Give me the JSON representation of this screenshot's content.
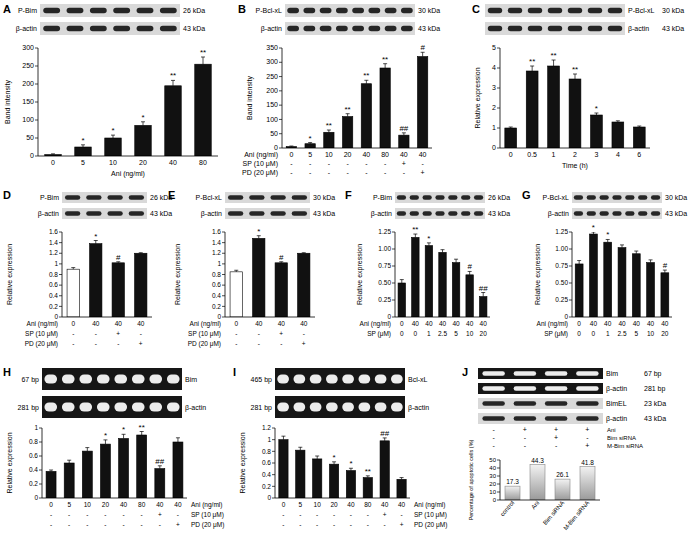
{
  "chart_data": [
    {
      "type": "bar",
      "title": "A",
      "blots": [
        {
          "label": "P-Bim",
          "size": "26 kDa"
        },
        {
          "label": "β-actin",
          "size": "43 kDa"
        }
      ],
      "y_label": "Band intensity",
      "ylim": [
        0,
        300
      ],
      "yticks": [
        0,
        50,
        100,
        150,
        200,
        250,
        300
      ],
      "x_label": "Ani (ng/ml)",
      "categories": [
        "0",
        "5",
        "10",
        "20",
        "40",
        "80"
      ],
      "values": [
        4,
        25,
        50,
        85,
        195,
        255
      ],
      "errors": [
        2,
        6,
        8,
        10,
        15,
        20
      ],
      "annotations": [
        null,
        "*",
        "*",
        "*",
        "**",
        "**"
      ],
      "color": "#111111"
    },
    {
      "type": "bar",
      "title": "B",
      "blots": [
        {
          "label": "P-Bcl-xL",
          "size": "30 kDa"
        },
        {
          "label": "β-actin",
          "size": "43 kDa"
        }
      ],
      "y_label": "Band intensity",
      "ylim": [
        0,
        350
      ],
      "yticks": [
        0,
        50,
        100,
        150,
        200,
        250,
        300,
        350
      ],
      "x_label": "Ani (ng/ml)",
      "categories": [
        "0",
        "5",
        "10",
        "20",
        "40",
        "80",
        "40",
        "40"
      ],
      "conditions": [
        {
          "label": "SP (10 μM)",
          "values": [
            "-",
            "-",
            "-",
            "-",
            "-",
            "-",
            "+",
            "-"
          ]
        },
        {
          "label": "PD (20 μM)",
          "values": [
            "-",
            "-",
            "-",
            "-",
            "-",
            "-",
            "-",
            "+"
          ]
        }
      ],
      "values": [
        5,
        15,
        55,
        110,
        225,
        280,
        45,
        320
      ],
      "errors": [
        2,
        4,
        8,
        10,
        12,
        15,
        8,
        15
      ],
      "annotations": [
        null,
        "*",
        "**",
        "**",
        "**",
        "**",
        "##",
        "#"
      ],
      "color": "#111111"
    },
    {
      "type": "bar",
      "title": "C",
      "blots": [
        {
          "label": "P-Bcl-xL",
          "size": "30 kDa"
        },
        {
          "label": "β-actin",
          "size": "43 kDa"
        }
      ],
      "y_label": "Relative expression",
      "ylim": [
        0,
        5
      ],
      "yticks": [
        0,
        1,
        2,
        3,
        4,
        5
      ],
      "x_label": "Time (h)",
      "categories": [
        "0",
        "0.5",
        "1",
        "2",
        "3",
        "4",
        "6"
      ],
      "values": [
        1,
        3.85,
        4.1,
        3.45,
        1.65,
        1.3,
        1.05
      ],
      "errors": [
        0.05,
        0.25,
        0.3,
        0.25,
        0.1,
        0.06,
        0.05
      ],
      "annotations": [
        null,
        "**",
        "**",
        "**",
        "*",
        null,
        null
      ],
      "color": "#111111"
    },
    {
      "type": "bar",
      "title": "D",
      "blots": [
        {
          "label": "P-Bim",
          "size": "26 kDa"
        },
        {
          "label": "β-actin",
          "size": "43 kDa"
        }
      ],
      "y_label": "Relative expression",
      "ylim": [
        0,
        1.6
      ],
      "yticks": [
        0,
        0.2,
        0.4,
        0.6,
        0.8,
        1,
        1.2,
        1.4,
        1.6
      ],
      "x_label": "Ani (ng/ml)",
      "categories": [
        "0",
        "40",
        "40",
        "40"
      ],
      "conditions": [
        {
          "label": "SP (10 μM)",
          "values": [
            "-",
            "-",
            "+",
            "-"
          ]
        },
        {
          "label": "PD (20 μM)",
          "values": [
            "-",
            "-",
            "-",
            "+"
          ]
        }
      ],
      "values": [
        0.9,
        1.38,
        1.02,
        1.2
      ],
      "errors": [
        0.03,
        0.06,
        0.02,
        0.01
      ],
      "annotations": [
        null,
        "*",
        "#",
        null
      ],
      "colors": [
        "#ffffff",
        "#111111",
        "#111111",
        "#111111"
      ]
    },
    {
      "type": "bar",
      "title": "E",
      "blots": [
        {
          "label": "P-Bcl-xL",
          "size": "30 kDa"
        },
        {
          "label": "β-actin",
          "size": "43 kDa"
        }
      ],
      "y_label": "Relative expression",
      "ylim": [
        0,
        1.6
      ],
      "yticks": [
        0,
        0.2,
        0.4,
        0.6,
        0.8,
        1,
        1.2,
        1.4,
        1.6
      ],
      "x_label": "Ani (ng/ml)",
      "categories": [
        "0",
        "40",
        "40",
        "40"
      ],
      "conditions": [
        {
          "label": "SP (10 μM)",
          "values": [
            "-",
            "-",
            "+",
            "-"
          ]
        },
        {
          "label": "PD (20 μM)",
          "values": [
            "-",
            "-",
            "-",
            "+"
          ]
        }
      ],
      "values": [
        0.85,
        1.48,
        1.02,
        1.2
      ],
      "errors": [
        0.03,
        0.05,
        0.02,
        0.01
      ],
      "annotations": [
        null,
        "*",
        "#",
        null
      ],
      "colors": [
        "#ffffff",
        "#111111",
        "#111111",
        "#111111"
      ]
    },
    {
      "type": "bar",
      "title": "F",
      "blots": [
        {
          "label": "P-Bim",
          "size": "26 kDa"
        },
        {
          "label": "β-actin",
          "size": "43 kDa"
        }
      ],
      "y_label": "Relative expression",
      "ylim": [
        0,
        1.25
      ],
      "yticks": [
        0,
        0.25,
        {
          "value": 0.5,
          "label": "0.50"
        },
        0.75,
        {
          "value": 1,
          "label": "1.00"
        },
        1.25
      ],
      "x_label": "Ani (ng/ml)",
      "categories": [
        "0",
        "40",
        "40",
        "40",
        "40",
        "40",
        "40"
      ],
      "conditions": [
        {
          "label": "SP (μM)",
          "values": [
            "0",
            "0",
            "1",
            "2.5",
            "5",
            "10",
            "20"
          ]
        }
      ],
      "values": [
        0.5,
        1.17,
        1.05,
        0.95,
        0.8,
        0.62,
        0.3
      ],
      "errors": [
        0.05,
        0.05,
        0.04,
        0.04,
        0.05,
        0.05,
        0.06
      ],
      "annotations": [
        null,
        "**",
        "*",
        null,
        null,
        "#",
        "##"
      ],
      "color": "#111111"
    },
    {
      "type": "bar",
      "title": "G",
      "blots": [
        {
          "label": "P-Bcl-xL",
          "size": "30 kDa"
        },
        {
          "label": "β-actin",
          "size": "43 kDa"
        }
      ],
      "y_label": "Relative expression",
      "ylim": [
        0,
        1.25
      ],
      "yticks": [
        0,
        0.25,
        {
          "value": 0.5,
          "label": "0.50"
        },
        0.75,
        {
          "value": 1,
          "label": "1.00"
        },
        1.25
      ],
      "x_label": "Ani (ng/ml)",
      "categories": [
        "0",
        "40",
        "40",
        "40",
        "40",
        "40",
        "40"
      ],
      "conditions": [
        {
          "label": "SP (μM)",
          "values": [
            "0",
            "0",
            "1",
            "2.5",
            "5",
            "10",
            "20"
          ]
        }
      ],
      "values": [
        0.78,
        1.22,
        1.1,
        1.02,
        0.93,
        0.8,
        0.65
      ],
      "errors": [
        0.05,
        0.03,
        0.04,
        0.04,
        0.04,
        0.04,
        0.04
      ],
      "annotations": [
        null,
        "*",
        "*",
        null,
        null,
        null,
        "#"
      ],
      "color": "#111111"
    },
    {
      "type": "bar",
      "title": "H",
      "blots": [
        {
          "label": "Bim",
          "size": "67 bp"
        },
        {
          "label": "β-actin",
          "size": "281 bp"
        }
      ],
      "y_label": "Relative expression",
      "ylim": [
        0,
        1
      ],
      "yticks": [
        0,
        0.2,
        0.4,
        0.6,
        0.8,
        1
      ],
      "x_label": "Ani (ng/ml)",
      "categories": [
        "0",
        "5",
        "10",
        "20",
        "40",
        "80",
        "40",
        "40"
      ],
      "conditions": [
        {
          "label": "SP (10 μM)",
          "values": [
            "-",
            "-",
            "-",
            "-",
            "-",
            "-",
            "+",
            "-"
          ]
        },
        {
          "label": "PD (20 μM)",
          "values": [
            "-",
            "-",
            "-",
            "-",
            "-",
            "-",
            "-",
            "+"
          ]
        }
      ],
      "values": [
        0.38,
        0.5,
        0.67,
        0.77,
        0.85,
        0.9,
        0.42,
        0.8
      ],
      "errors": [
        0.02,
        0.04,
        0.05,
        0.06,
        0.06,
        0.05,
        0.04,
        0.06
      ],
      "annotations": [
        null,
        null,
        null,
        "*",
        "*",
        "**",
        "##",
        null
      ],
      "color": "#111111"
    },
    {
      "type": "bar",
      "title": "I",
      "blots": [
        {
          "label": "Bcl-xL",
          "size": "465 bp"
        },
        {
          "label": "β-actin",
          "size": "281 bp"
        }
      ],
      "y_label": "Relative expression",
      "ylim": [
        0,
        1.2
      ],
      "yticks": [
        0,
        0.2,
        0.4,
        0.6,
        0.8,
        1,
        1.2
      ],
      "x_label": "Ani (ng/ml)",
      "categories": [
        "0",
        "5",
        "10",
        "20",
        "40",
        "80",
        "40",
        "40"
      ],
      "conditions": [
        {
          "label": "SP (10 μM)",
          "values": [
            "-",
            "-",
            "-",
            "-",
            "-",
            "-",
            "+",
            "-"
          ]
        },
        {
          "label": "PD (20 μM)",
          "values": [
            "-",
            "-",
            "-",
            "-",
            "-",
            "-",
            "-",
            "+"
          ]
        }
      ],
      "values": [
        1,
        0.82,
        0.67,
        0.58,
        0.47,
        0.35,
        0.98,
        0.32
      ],
      "errors": [
        0.06,
        0.05,
        0.05,
        0.04,
        0.04,
        0.03,
        0.05,
        0.03
      ],
      "annotations": [
        null,
        null,
        null,
        "*",
        "*",
        "**",
        "##",
        null
      ],
      "color": "#111111"
    },
    {
      "type": "bar",
      "title": "J",
      "blots": [
        {
          "label": "Bim",
          "size": "67 bp"
        },
        {
          "label": "β-actin",
          "size": "281 bp"
        },
        {
          "label": "BimEL",
          "size": "23 kDa"
        },
        {
          "label": "β-actin",
          "size": "43 kDa"
        }
      ],
      "conditions": [
        {
          "label": "Ani",
          "values": [
            "-",
            "+",
            "+",
            "+"
          ]
        },
        {
          "label": "Bim siRNA",
          "values": [
            "-",
            "-",
            "+",
            "-"
          ]
        },
        {
          "label": "M-Bim siRNA",
          "values": [
            "-",
            "-",
            "-",
            "+"
          ]
        }
      ],
      "y_label": "Percentage of apoptotic cells (%)",
      "ylim": [
        0,
        50
      ],
      "yticks": [
        0,
        10,
        20,
        30,
        40,
        50
      ],
      "categories": [
        "control",
        "Ani",
        "Bim siRNA",
        "M-Bim siRNA"
      ],
      "values": [
        17.3,
        44.3,
        26.1,
        41.8
      ],
      "data_labels": true,
      "color": "#9a9a9a"
    }
  ]
}
